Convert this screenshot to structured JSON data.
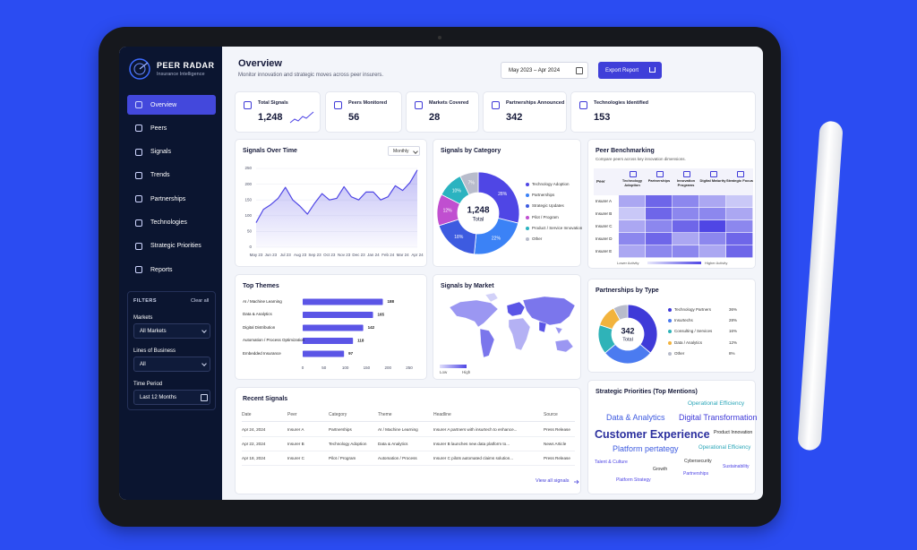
{
  "sidebar": {
    "brand": "PEER RADAR",
    "tagline": "Insurance Intelligence",
    "nav": [
      "Overview",
      "Peers",
      "Signals",
      "Trends",
      "Partnerships",
      "Technologies",
      "Strategic Priorities",
      "Reports"
    ],
    "filters": {
      "title": "FILTERS",
      "clear": "Clear all",
      "fields": [
        {
          "label": "Markets",
          "value": "All Markets"
        },
        {
          "label": "Lines of Business",
          "value": "All"
        },
        {
          "label": "Time Period",
          "value": "Last 12 Months"
        }
      ]
    }
  },
  "header": {
    "title": "Overview",
    "subtitle": "Monitor innovation and strategic moves across peer insurers.",
    "date_range": "May 2023 – Apr 2024",
    "export": "Export Report"
  },
  "kpis": [
    {
      "label": "Total Signals",
      "value": "1,248"
    },
    {
      "label": "Peers Monitored",
      "value": "56"
    },
    {
      "label": "Markets Covered",
      "value": "28"
    },
    {
      "label": "Partnerships Announced",
      "value": "342"
    },
    {
      "label": "Technologies Identified",
      "value": "153"
    }
  ],
  "chart_data": [
    {
      "type": "line",
      "title": "Signals Over Time",
      "period": "Monthly",
      "categories": [
        "May 23",
        null,
        "Jun 23",
        null,
        "Jul 23",
        null,
        "Aug 23",
        null,
        "Sep 23",
        null,
        "Oct 23",
        null,
        "Nov 23",
        null,
        "Dec 23",
        null,
        "Jan 24",
        null,
        "Feb 24",
        null,
        "Mar 24",
        null,
        "Apr 24"
      ],
      "values": [
        78,
        120,
        135,
        155,
        190,
        150,
        130,
        105,
        140,
        170,
        150,
        155,
        192,
        160,
        150,
        175,
        175,
        150,
        160,
        195,
        180,
        205,
        245
      ],
      "color": "#4f46e5",
      "ylim": [
        0,
        250
      ],
      "yticks": [
        0,
        50,
        100,
        150,
        200,
        250
      ],
      "grid": true
    },
    {
      "type": "donut",
      "title": "Signals by Category",
      "center_value": "1,248",
      "center_label": "Total",
      "categories": [
        "Technology Adoption",
        "Partnerships",
        "Strategic Updates",
        "Pilot / Program",
        "Product / Service Innovation",
        "Other"
      ],
      "values": [
        28,
        22,
        18,
        12,
        10,
        7
      ],
      "value_labels": [
        "28%",
        "22%",
        "18%",
        "12%",
        "10%",
        "7%"
      ],
      "colors": [
        "#4f46e5",
        "#3b82f6",
        "#3d5be0",
        "#c04fd0",
        "#2bb3c0",
        "#b8bccb"
      ]
    },
    {
      "type": "heatmap",
      "title": "Peer Benchmarking",
      "subtitle": "Compare peers across key innovation dimensions.",
      "row_header": "Peer",
      "columns": [
        "Technology Adoption",
        "Partnerships",
        "Innovation Programs",
        "Digital Maturity",
        "Strategic Focus"
      ],
      "rows": [
        "Insurer A",
        "Insurer B",
        "Insurer C",
        "Insurer D",
        "Insurer E"
      ],
      "values": [
        [
          2,
          4,
          3,
          2,
          1
        ],
        [
          1,
          4,
          3,
          3,
          2
        ],
        [
          2,
          3,
          4,
          5,
          3
        ],
        [
          3,
          4,
          2,
          3,
          4
        ],
        [
          2,
          3,
          3,
          2,
          4
        ]
      ],
      "clim": [
        0,
        5
      ],
      "color": "#4f46e5",
      "low_label": "Lower Activity",
      "high_label": "Higher Activity"
    },
    {
      "type": "barh",
      "title": "Top Themes",
      "categories": [
        "AI / Machine Learning",
        "Data & Analytics",
        "Digital Distribution",
        "Automation / Process Optimization",
        "Embedded Insurance"
      ],
      "values": [
        188,
        165,
        142,
        118,
        97
      ],
      "color": "#5b55e6",
      "xlim": [
        0,
        250
      ],
      "xticks": [
        0,
        50,
        100,
        150,
        200,
        250
      ]
    },
    {
      "type": "donut",
      "title": "Partnerships by Type",
      "center_value": "342",
      "center_label": "Total",
      "categories": [
        "Technology Partners",
        "Insurtechs",
        "Consulting / Services",
        "Data / Analytics",
        "Other"
      ],
      "values": [
        36,
        28,
        16,
        12,
        8
      ],
      "value_labels": [
        "36%",
        "28%",
        "16%",
        "12%",
        "8%"
      ],
      "colors": [
        "#3f3ad8",
        "#4b7bf0",
        "#2fb3b8",
        "#f2b33d",
        "#b8bccb"
      ]
    }
  ],
  "market_map": {
    "title": "Signals by Market",
    "low": "Low",
    "high": "High"
  },
  "recent_signals": {
    "title": "Recent Signals",
    "columns": [
      "Date",
      "Peer",
      "Category",
      "Theme",
      "Headline",
      "Source"
    ],
    "rows": [
      [
        "Apr 24, 2024",
        "Insurer A",
        "Partnerships",
        "AI / Machine Learning",
        "Insurer A partners with insurtech to enhance...",
        "Press Release"
      ],
      [
        "Apr 22, 2024",
        "Insurer B",
        "Technology Adoption",
        "Data & Analytics",
        "Insurer B launches new data platform to...",
        "News Article"
      ],
      [
        "Apr 18, 2024",
        "Insurer C",
        "Pilot / Program",
        "Automation / Process",
        "Insurer C pilots automated claims solution...",
        "Press Release"
      ]
    ],
    "link": "View all signals"
  },
  "strategic_priorities": {
    "title": "Strategic Priorities (Top Mentions)",
    "words": [
      "Operational Efficiency",
      "Data & Analytics",
      "Digital Transformation",
      "Customer Experience",
      "Product Innovation",
      "Platform pertategy",
      "Operational Efficiency",
      "Talent & Culture",
      "Cybersecurity",
      "Sustainability",
      "Growth",
      "Partnerships",
      "Platform Strategy"
    ]
  }
}
